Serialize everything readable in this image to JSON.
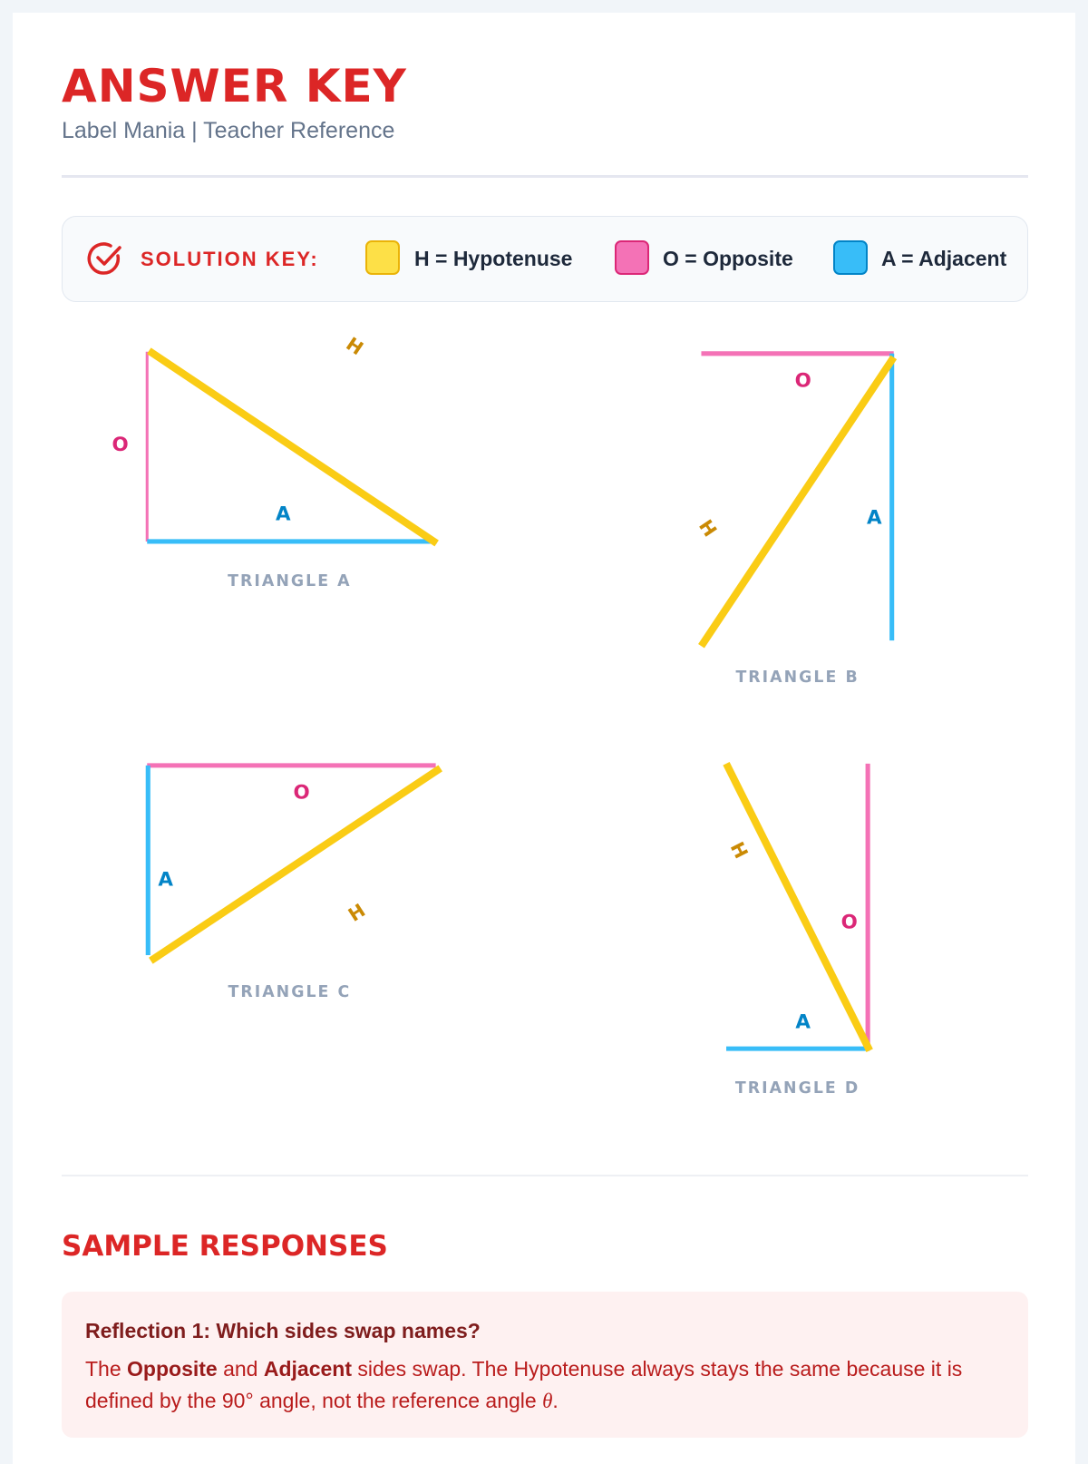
{
  "header": {
    "title": "ANSWER KEY",
    "subtitle": "Label Mania | Teacher Reference"
  },
  "key": {
    "icon": "check-circle-icon",
    "label": "SOLUTION KEY:",
    "items": [
      {
        "text": "H = Hypotenuse",
        "color": "#fde047"
      },
      {
        "text": "O = Opposite",
        "color": "#f472b6"
      },
      {
        "text": "A = Adjacent",
        "color": "#38bdf8"
      }
    ]
  },
  "triangles": [
    {
      "caption": "TRIANGLE A",
      "h": "H",
      "o": "O",
      "a": "A"
    },
    {
      "caption": "TRIANGLE B",
      "h": "H",
      "o": "O",
      "a": "A"
    },
    {
      "caption": "TRIANGLE C",
      "h": "H",
      "o": "O",
      "a": "A"
    },
    {
      "caption": "TRIANGLE D",
      "h": "H",
      "o": "O",
      "a": "A"
    }
  ],
  "responses": {
    "title": "SAMPLE RESPONSES",
    "items": [
      {
        "heading": "Reflection 1: Which sides swap names?",
        "p1": "The ",
        "b1": "Opposite",
        "p2": " and ",
        "b2": "Adjacent",
        "p3": " sides swap. The Hypotenuse always stays the same because it is defined by the 90° angle, not the reference angle ",
        "theta": "θ",
        "p4": "."
      }
    ]
  }
}
